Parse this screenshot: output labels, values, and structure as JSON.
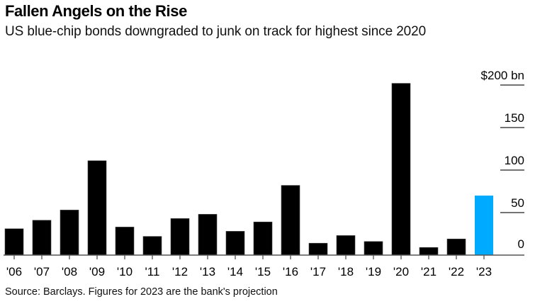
{
  "chart_data": {
    "type": "bar",
    "title": "Fallen Angels on the Rise",
    "subtitle": "US blue-chip bonds downgraded to junk on track for highest since 2020",
    "source": "Source: Barclays. Figures for 2023 are the bank's projection",
    "xlabel": "",
    "ylabel": "",
    "ylim": [
      0,
      200
    ],
    "unit": "$ bn",
    "yticks": [
      0,
      50,
      100,
      150,
      200
    ],
    "ytick_labels": [
      "0",
      "50",
      "100",
      "150",
      "$200 bn"
    ],
    "categories": [
      "'06",
      "'07",
      "'08",
      "'09",
      "'10",
      "'11",
      "'12",
      "'13",
      "'14",
      "'15",
      "'16",
      "'17",
      "'18",
      "'19",
      "'20",
      "'21",
      "'22",
      "'23"
    ],
    "values": [
      31,
      41,
      53,
      111,
      33,
      22,
      43,
      48,
      28,
      39,
      82,
      14,
      23,
      16,
      202,
      9,
      19,
      70
    ],
    "projected": [
      false,
      false,
      false,
      false,
      false,
      false,
      false,
      false,
      false,
      false,
      false,
      false,
      false,
      false,
      false,
      false,
      false,
      true
    ],
    "colors": {
      "actual": "#000000",
      "projected": "#00aaff",
      "axis": "#555555"
    },
    "grid": false,
    "legend": "none"
  }
}
